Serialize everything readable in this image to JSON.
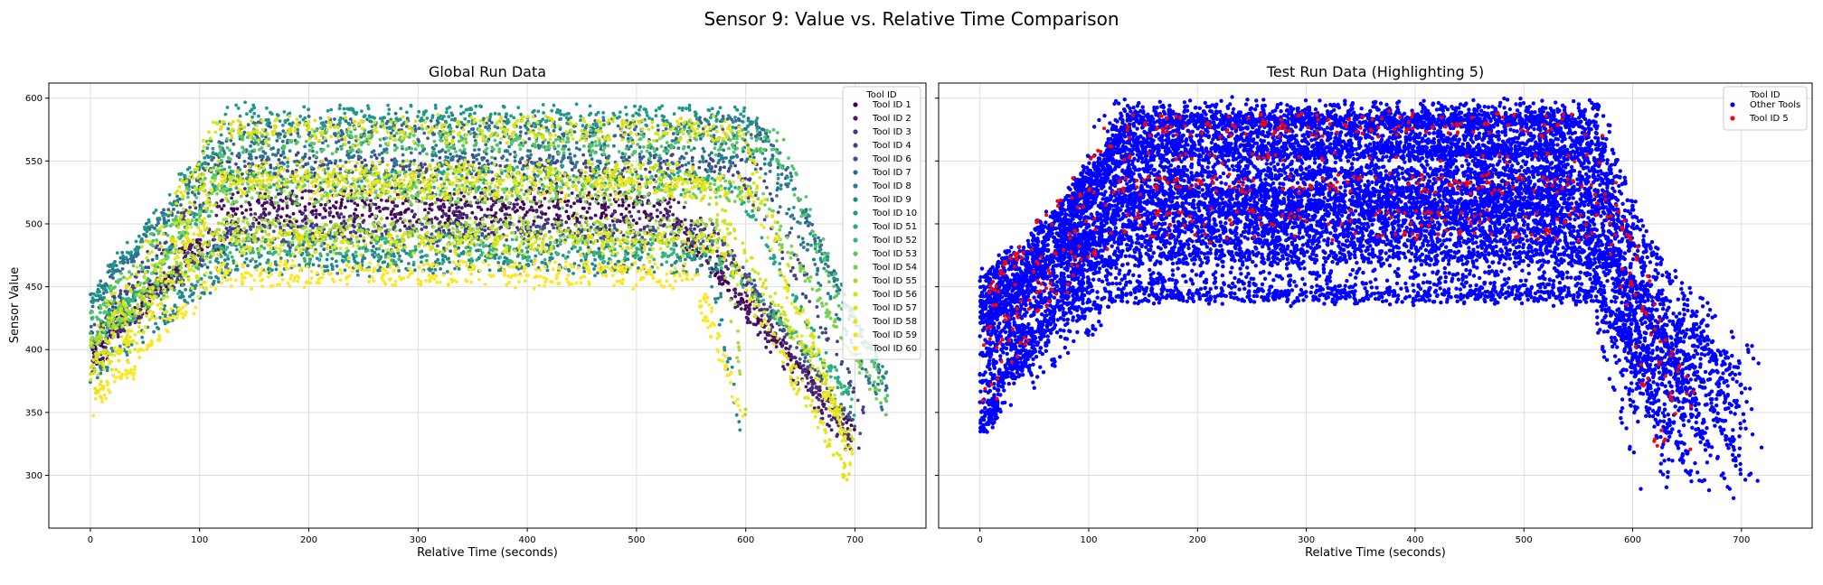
{
  "figure": {
    "suptitle": "Sensor 9: Value vs. Relative Time Comparison"
  },
  "chart_data": [
    {
      "type": "scatter",
      "title": "Global Run Data",
      "xlabel": "Relative Time (seconds)",
      "ylabel": "Sensor Value",
      "xlim": [
        -38,
        765
      ],
      "ylim": [
        258,
        612
      ],
      "xticks": [
        0,
        100,
        200,
        300,
        400,
        500,
        600,
        700
      ],
      "yticks": [
        300,
        350,
        400,
        450,
        500,
        550,
        600
      ],
      "grid": true,
      "legend": {
        "title": "Tool ID",
        "placement": "top-right"
      },
      "colormap": "viridis",
      "series": [
        {
          "name": "Tool ID 1",
          "color": "#440154",
          "start": 395,
          "plateau": 510,
          "ramp_end": 135,
          "fall_start": 520,
          "end": 330,
          "x_end": 700
        },
        {
          "name": "Tool ID 2",
          "color": "#481a6c",
          "start": 385,
          "plateau": 520,
          "ramp_end": 130,
          "fall_start": 525,
          "end": 320,
          "x_end": 700
        },
        {
          "name": "Tool ID 3",
          "color": "#472f7d",
          "start": 400,
          "plateau": 500,
          "ramp_end": 140,
          "fall_start": 560,
          "end": 315,
          "x_end": 705
        },
        {
          "name": "Tool ID 4",
          "color": "#414487",
          "start": 410,
          "plateau": 545,
          "ramp_end": 125,
          "fall_start": 600,
          "end": 345,
          "x_end": 710
        },
        {
          "name": "Tool ID 6",
          "color": "#39568c",
          "start": 420,
          "plateau": 490,
          "ramp_end": 130,
          "fall_start": 575,
          "end": 330,
          "x_end": 705
        },
        {
          "name": "Tool ID 7",
          "color": "#31688e",
          "start": 430,
          "plateau": 575,
          "ramp_end": 135,
          "fall_start": 615,
          "end": 370,
          "x_end": 730
        },
        {
          "name": "Tool ID 8",
          "color": "#2a788e",
          "start": 440,
          "plateau": 555,
          "ramp_end": 120,
          "fall_start": 620,
          "end": 360,
          "x_end": 725
        },
        {
          "name": "Tool ID 9",
          "color": "#23888e",
          "start": 380,
          "plateau": 470,
          "ramp_end": 130,
          "fall_start": 570,
          "end": 340,
          "x_end": 595
        },
        {
          "name": "Tool ID 10",
          "color": "#1f988b",
          "start": 445,
          "plateau": 585,
          "ramp_end": 130,
          "fall_start": 605,
          "end": 375,
          "x_end": 730
        },
        {
          "name": "Tool ID 51",
          "color": "#22a884",
          "start": 400,
          "plateau": 535,
          "ramp_end": 125,
          "fall_start": 590,
          "end": 350,
          "x_end": 700
        },
        {
          "name": "Tool ID 52",
          "color": "#35b779",
          "start": 415,
          "plateau": 480,
          "ramp_end": 130,
          "fall_start": 570,
          "end": 360,
          "x_end": 700
        },
        {
          "name": "Tool ID 53",
          "color": "#54c568",
          "start": 425,
          "plateau": 565,
          "ramp_end": 135,
          "fall_start": 630,
          "end": 355,
          "x_end": 730
        },
        {
          "name": "Tool ID 54",
          "color": "#7ad151",
          "start": 390,
          "plateau": 525,
          "ramp_end": 120,
          "fall_start": 610,
          "end": 365,
          "x_end": 720
        },
        {
          "name": "Tool ID 55",
          "color": "#a5db36",
          "start": 405,
          "plateau": 495,
          "ramp_end": 120,
          "fall_start": 580,
          "end": 345,
          "x_end": 600
        },
        {
          "name": "Tool ID 56",
          "color": "#d2e21b",
          "start": 380,
          "plateau": 540,
          "ramp_end": 110,
          "fall_start": 560,
          "end": 330,
          "x_end": 700
        },
        {
          "name": "Tool ID 57",
          "color": "#dde318",
          "start": 395,
          "plateau": 575,
          "ramp_end": 115,
          "fall_start": 600,
          "end": 310,
          "x_end": 700
        },
        {
          "name": "Tool ID 58",
          "color": "#e5e419",
          "start": 370,
          "plateau": 485,
          "ramp_end": 115,
          "fall_start": 580,
          "end": 300,
          "x_end": 695
        },
        {
          "name": "Tool ID 59",
          "color": "#eee51c",
          "start": 360,
          "plateau": 530,
          "ramp_end": 120,
          "fall_start": 600,
          "end": 305,
          "x_end": 700
        },
        {
          "name": "Tool ID 60",
          "color": "#fde725",
          "start": 350,
          "plateau": 460,
          "ramp_end": 115,
          "fall_start": 555,
          "end": 340,
          "x_end": 600
        }
      ]
    },
    {
      "type": "scatter",
      "title": "Test Run Data (Highlighting 5)",
      "xlabel": "Relative Time (seconds)",
      "ylabel": "",
      "xlim": [
        -38,
        765
      ],
      "ylim": [
        258,
        612
      ],
      "xticks": [
        0,
        100,
        200,
        300,
        400,
        500,
        600,
        700
      ],
      "yticks": [
        300,
        350,
        400,
        450,
        500,
        550,
        600
      ],
      "grid": true,
      "shared_y": true,
      "legend": {
        "title": "Tool ID",
        "placement": "top-right"
      },
      "series": [
        {
          "name": "Other Tools",
          "color": "#0000ff",
          "start_range": [
            330,
            460
          ],
          "plateau_range": [
            440,
            595
          ],
          "ramp_end": 130,
          "fall_start": 560,
          "end_range": [
            280,
            390
          ],
          "x_end_range": [
            600,
            725
          ]
        },
        {
          "name": "Tool ID 5",
          "color": "#ff0000",
          "start_range": [
            340,
            450
          ],
          "plateau_range": [
            455,
            590
          ],
          "ramp_end": 130,
          "fall_start": 570,
          "end_range": [
            300,
            360
          ],
          "x_end_range": [
            620,
            700
          ]
        }
      ]
    }
  ]
}
